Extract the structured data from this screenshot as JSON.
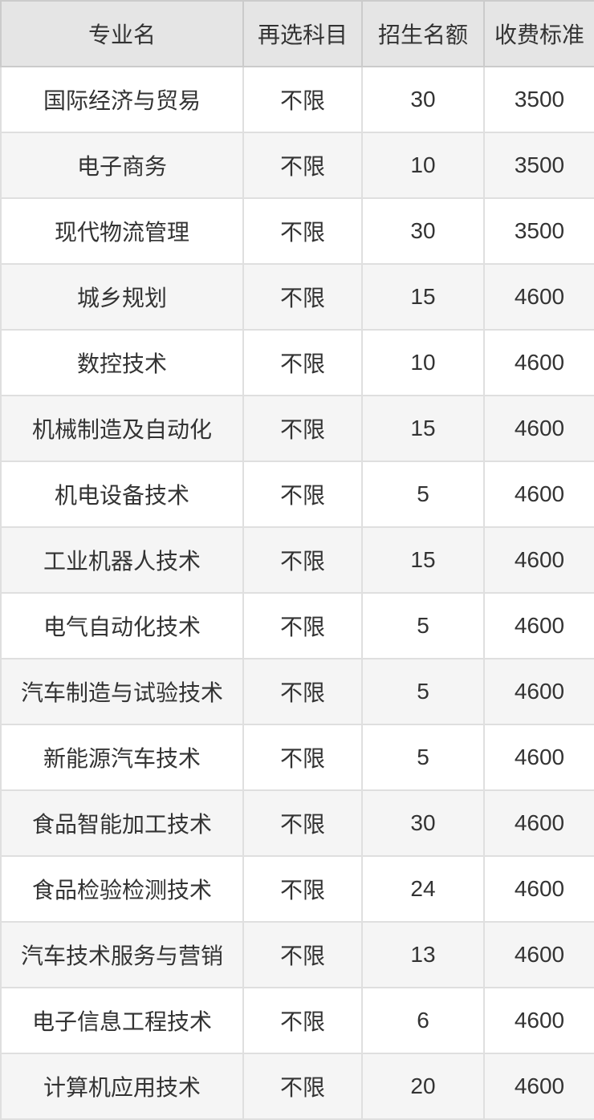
{
  "table": {
    "columns": [
      {
        "key": "major",
        "label": "专业名"
      },
      {
        "key": "subjects",
        "label": "再选科目"
      },
      {
        "key": "quota",
        "label": "招生名额"
      },
      {
        "key": "fee",
        "label": "收费标准"
      }
    ],
    "rows": [
      {
        "major": "国际经济与贸易",
        "subjects": "不限",
        "quota": "30",
        "fee": "3500"
      },
      {
        "major": "电子商务",
        "subjects": "不限",
        "quota": "10",
        "fee": "3500"
      },
      {
        "major": "现代物流管理",
        "subjects": "不限",
        "quota": "30",
        "fee": "3500"
      },
      {
        "major": "城乡规划",
        "subjects": "不限",
        "quota": "15",
        "fee": "4600"
      },
      {
        "major": "数控技术",
        "subjects": "不限",
        "quota": "10",
        "fee": "4600"
      },
      {
        "major": "机械制造及自动化",
        "subjects": "不限",
        "quota": "15",
        "fee": "4600"
      },
      {
        "major": "机电设备技术",
        "subjects": "不限",
        "quota": "5",
        "fee": "4600"
      },
      {
        "major": "工业机器人技术",
        "subjects": "不限",
        "quota": "15",
        "fee": "4600"
      },
      {
        "major": "电气自动化技术",
        "subjects": "不限",
        "quota": "5",
        "fee": "4600"
      },
      {
        "major": "汽车制造与试验技术",
        "subjects": "不限",
        "quota": "5",
        "fee": "4600"
      },
      {
        "major": "新能源汽车技术",
        "subjects": "不限",
        "quota": "5",
        "fee": "4600"
      },
      {
        "major": "食品智能加工技术",
        "subjects": "不限",
        "quota": "30",
        "fee": "4600"
      },
      {
        "major": "食品检验检测技术",
        "subjects": "不限",
        "quota": "24",
        "fee": "4600"
      },
      {
        "major": "汽车技术服务与营销",
        "subjects": "不限",
        "quota": "13",
        "fee": "4600"
      },
      {
        "major": "电子信息工程技术",
        "subjects": "不限",
        "quota": "6",
        "fee": "4600"
      },
      {
        "major": "计算机应用技术",
        "subjects": "不限",
        "quota": "20",
        "fee": "4600"
      }
    ],
    "colors": {
      "header_background": "#e5e5e5",
      "alt_row_background": "#f5f5f5",
      "header_border": "#cbcbcb",
      "body_border": "#dfdfdf",
      "text": "#333333"
    }
  }
}
